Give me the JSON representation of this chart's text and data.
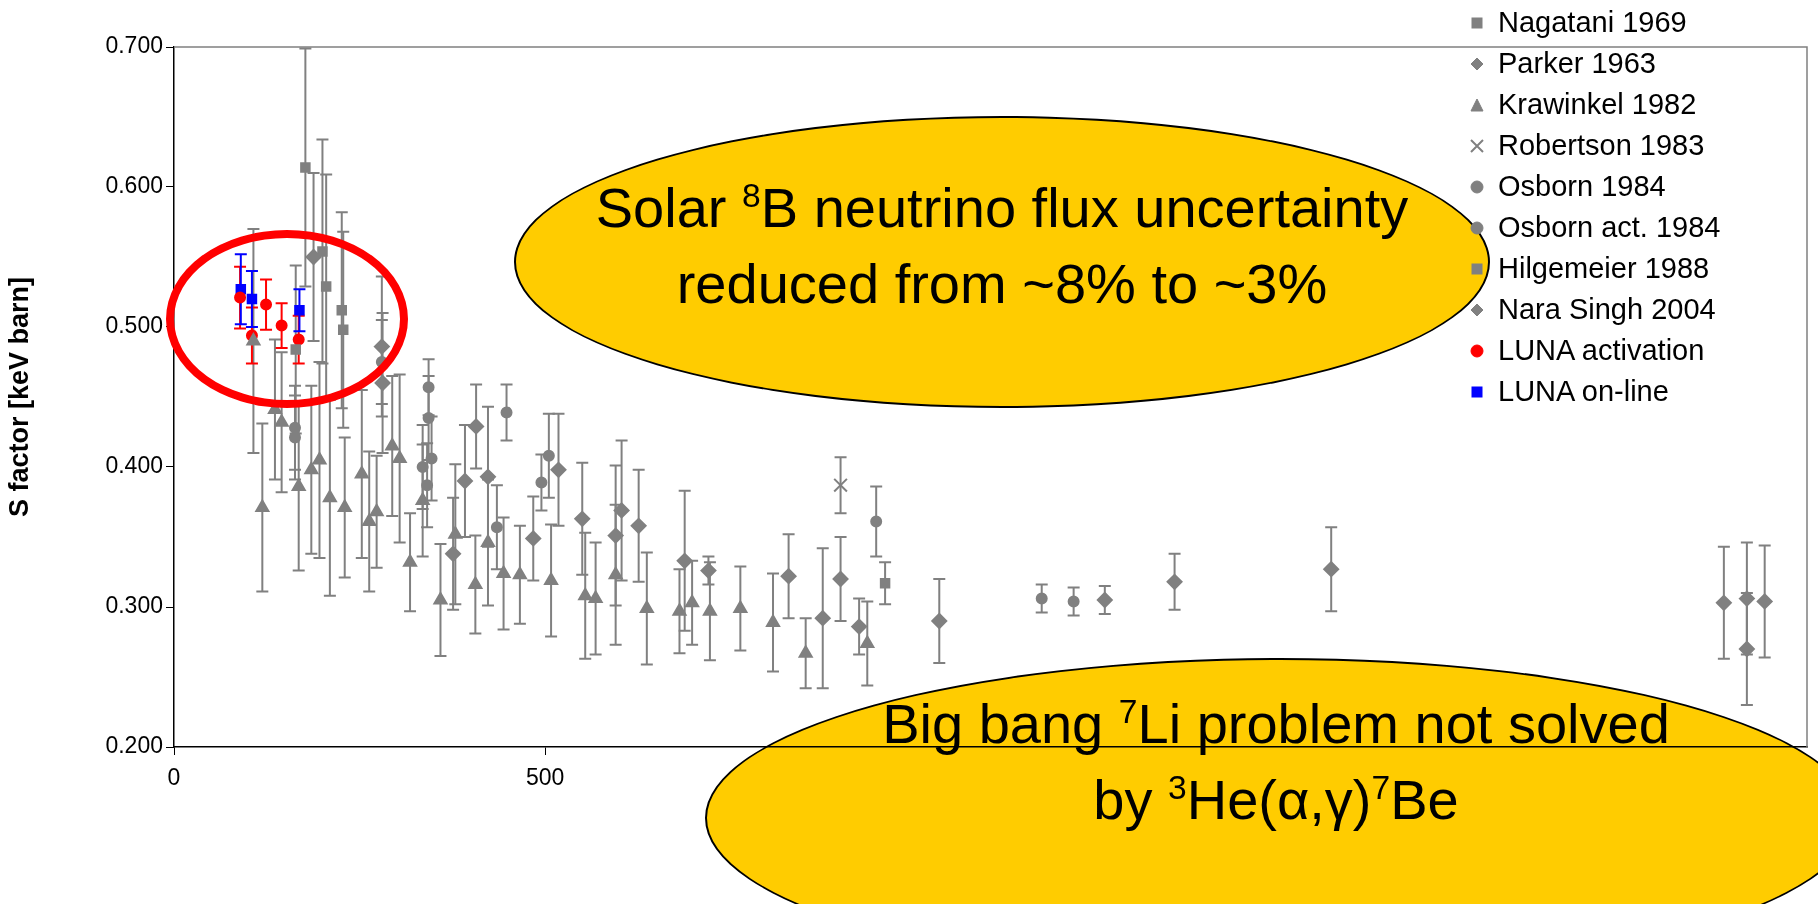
{
  "chart_data": {
    "type": "scatter",
    "ylabel": "S factor [keV barn]",
    "xlim": [
      0,
      2200
    ],
    "xticks": [
      0,
      500
    ],
    "ylim": [
      0.2,
      0.7
    ],
    "yticks": [
      {
        "value": 0.2,
        "label": "0.200"
      },
      {
        "value": 0.3,
        "label": "0.300"
      },
      {
        "value": 0.4,
        "label": "0.400"
      },
      {
        "value": 0.5,
        "label": "0.500"
      },
      {
        "value": 0.6,
        "label": "0.600"
      },
      {
        "value": 0.7,
        "label": "0.700"
      }
    ],
    "grid": false,
    "legend": "top right",
    "annotations": [
      "Solar $^{8}$B neutrino flux uncertainty reduced from ~8% to ~3%",
      "Big bang $^{7}$Li problem not solved by $^{3}$He(α,γ)$^{7}$Be"
    ],
    "series": [
      {
        "name": "Nagatani 1969",
        "color": "#808080",
        "marker": "square",
        "x": [
          177,
          200,
          205,
          226,
          228,
          164
        ],
        "values": [
          0.614,
          0.554,
          0.529,
          0.512,
          0.498,
          0.484
        ],
        "errors": [
          0.085,
          0.08,
          0.08,
          0.07,
          0.07,
          0.06
        ]
      },
      {
        "name": "Parker 1963",
        "color": "#808080",
        "marker": "diamond",
        "x": [
          188,
          280,
          281,
          407,
          392,
          423,
          376,
          484,
          518,
          550,
          595,
          603,
          626,
          688,
          720,
          828,
          874,
          898,
          923,
          1031,
          1254,
          1348,
          1559,
          2088,
          2119,
          2119,
          2143
        ],
        "values": [
          0.55,
          0.486,
          0.46,
          0.429,
          0.39,
          0.393,
          0.338,
          0.349,
          0.398,
          0.363,
          0.351,
          0.369,
          0.358,
          0.333,
          0.326,
          0.322,
          0.292,
          0.32,
          0.286,
          0.29,
          0.305,
          0.318,
          0.327,
          0.303,
          0.306,
          0.27,
          0.304
        ],
        "errors": [
          0.06,
          0.05,
          0.05,
          0.03,
          0.04,
          0.05,
          0.04,
          0.03,
          0.04,
          0.04,
          0.05,
          0.05,
          0.04,
          0.05,
          0.01,
          0.03,
          0.05,
          0.03,
          0.02,
          0.03,
          0.01,
          0.02,
          0.03,
          0.04,
          0.04,
          0.04,
          0.04
        ]
      },
      {
        "name": "Krawinkel 1982",
        "color": "#808080",
        "marker": "triangle",
        "x": [
          107,
          119,
          136,
          145,
          168,
          185,
          196,
          210,
          230,
          253,
          263,
          273,
          294,
          304,
          318,
          335,
          359,
          379,
          406,
          423,
          444,
          466,
          508,
          554,
          568,
          595,
          637,
          681,
          698,
          722,
          763,
          807,
          851,
          934
        ],
        "values": [
          0.49,
          0.371,
          0.441,
          0.432,
          0.386,
          0.398,
          0.405,
          0.378,
          0.371,
          0.395,
          0.361,
          0.368,
          0.415,
          0.406,
          0.332,
          0.376,
          0.305,
          0.352,
          0.316,
          0.346,
          0.324,
          0.323,
          0.319,
          0.308,
          0.306,
          0.323,
          0.299,
          0.297,
          0.303,
          0.297,
          0.299,
          0.289,
          0.267,
          0.274
        ],
        "errors": [
          0.08,
          0.06,
          0.05,
          0.05,
          0.06,
          0.06,
          0.07,
          0.07,
          0.05,
          0.06,
          0.05,
          0.04,
          0.05,
          0.06,
          0.035,
          0.04,
          0.04,
          0.05,
          0.035,
          0.045,
          0.04,
          0.035,
          0.04,
          0.045,
          0.04,
          0.05,
          0.04,
          0.03,
          0.03,
          0.035,
          0.03,
          0.035,
          0.025,
          0.03
        ]
      },
      {
        "name": "Robertson 1983",
        "color": "#808080",
        "marker": "cross",
        "x": [
          898
        ],
        "values": [
          0.387
        ],
        "errors": [
          0.02
        ]
      },
      {
        "name": "Osborn 1984",
        "color": "#808080",
        "marker": "circle",
        "x": [
          163,
          163,
          280,
          335,
          341,
          343,
          343,
          347,
          435,
          448,
          495,
          505,
          1169,
          1212
        ],
        "values": [
          0.428,
          0.421,
          0.475,
          0.4,
          0.387,
          0.457,
          0.435,
          0.406,
          0.357,
          0.439,
          0.389,
          0.408,
          0.306,
          0.304
        ],
        "errors": [
          0.03,
          0.03,
          0.03,
          0.03,
          0.03,
          0.02,
          0.03,
          0.03,
          0.03,
          0.02,
          0.02,
          0.03,
          0.01,
          0.01
        ]
      },
      {
        "name": "Osborn act. 1984",
        "color": "#808080",
        "marker": "circle",
        "x": [
          946
        ],
        "values": [
          0.361
        ],
        "errors": [
          0.025
        ]
      },
      {
        "name": "Hilgemeier 1988",
        "color": "#808080",
        "marker": "square",
        "x": [
          958
        ],
        "values": [
          0.317
        ],
        "errors": [
          0.015
        ]
      },
      {
        "name": "Nara Singh 2004",
        "color": "#808080",
        "marker": "diamond"
      },
      {
        "name": "LUNA activation",
        "color": "#ff0000",
        "marker": "circle",
        "x": [
          89,
          105,
          124,
          145,
          168
        ],
        "values": [
          0.521,
          0.494,
          0.516,
          0.501,
          0.491
        ],
        "errors": [
          0.022,
          0.02,
          0.018,
          0.016,
          0.017
        ]
      },
      {
        "name": "LUNA on-line",
        "color": "#0000ff",
        "marker": "square",
        "x": [
          90,
          105,
          169
        ],
        "values": [
          0.527,
          0.52,
          0.512
        ],
        "errors": [
          0.025,
          0.02,
          0.015
        ]
      }
    ]
  }
}
